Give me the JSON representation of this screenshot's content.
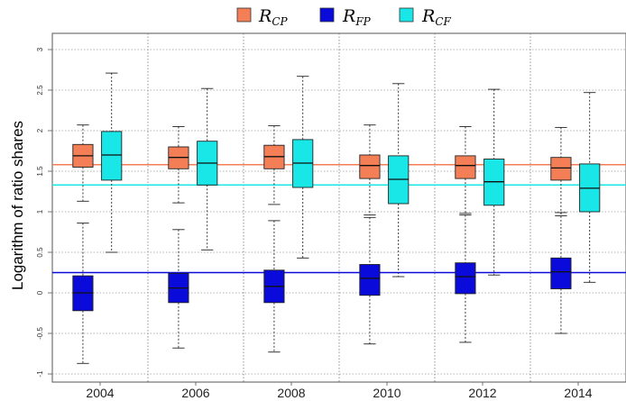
{
  "chart_data": {
    "type": "box",
    "ylabel": "Logarithm of ratio shares",
    "xlabel": "",
    "title": "",
    "categories": [
      "2004",
      "2006",
      "2008",
      "2010",
      "2012",
      "2014"
    ],
    "ylim": [
      -1.1,
      3.2
    ],
    "yticks": [
      "-1",
      "-0.5",
      "0",
      "0.5",
      "1",
      "1.5",
      "2",
      "2.5",
      "3"
    ],
    "ytick_values": [
      -1,
      -0.5,
      0,
      0.5,
      1,
      1.5,
      2,
      2.5,
      3
    ],
    "grid": "horizontal dotted",
    "legend_position": "top-center",
    "series": [
      {
        "name": "R",
        "sub": "CP",
        "color": "#f47f56",
        "reference_line": 1.58,
        "boxes": [
          {
            "whisker_low": 1.13,
            "q1": 1.55,
            "median": 1.69,
            "q3": 1.83,
            "whisker_high": 2.07
          },
          {
            "whisker_low": 1.11,
            "q1": 1.53,
            "median": 1.67,
            "q3": 1.8,
            "whisker_high": 2.05
          },
          {
            "whisker_low": 1.09,
            "q1": 1.53,
            "median": 1.68,
            "q3": 1.82,
            "whisker_high": 2.06
          },
          {
            "whisker_low": 0.96,
            "q1": 1.41,
            "median": 1.57,
            "q3": 1.7,
            "whisker_high": 2.07
          },
          {
            "whisker_low": 0.98,
            "q1": 1.41,
            "median": 1.57,
            "q3": 1.69,
            "whisker_high": 2.05
          },
          {
            "whisker_low": 0.95,
            "q1": 1.39,
            "median": 1.54,
            "q3": 1.67,
            "whisker_high": 2.04
          }
        ]
      },
      {
        "name": "R",
        "sub": "FP",
        "color": "#0a0adb",
        "reference_line": 0.25,
        "boxes": [
          {
            "whisker_low": -0.87,
            "q1": -0.22,
            "median": 0.0,
            "q3": 0.21,
            "whisker_high": 0.86
          },
          {
            "whisker_low": -0.68,
            "q1": -0.12,
            "median": 0.06,
            "q3": 0.24,
            "whisker_high": 0.78
          },
          {
            "whisker_low": -0.73,
            "q1": -0.12,
            "median": 0.08,
            "q3": 0.28,
            "whisker_high": 0.89
          },
          {
            "whisker_low": -0.63,
            "q1": -0.03,
            "median": 0.18,
            "q3": 0.35,
            "whisker_high": 0.93
          },
          {
            "whisker_low": -0.61,
            "q1": -0.01,
            "median": 0.2,
            "q3": 0.37,
            "whisker_high": 0.96
          },
          {
            "whisker_low": -0.5,
            "q1": 0.05,
            "median": 0.26,
            "q3": 0.43,
            "whisker_high": 0.99
          }
        ]
      },
      {
        "name": "R",
        "sub": "CF",
        "color": "#19e6e6",
        "reference_line": 1.33,
        "boxes": [
          {
            "whisker_low": 0.5,
            "q1": 1.39,
            "median": 1.7,
            "q3": 1.99,
            "whisker_high": 2.71
          },
          {
            "whisker_low": 0.53,
            "q1": 1.33,
            "median": 1.6,
            "q3": 1.87,
            "whisker_high": 2.52
          },
          {
            "whisker_low": 0.43,
            "q1": 1.3,
            "median": 1.6,
            "q3": 1.89,
            "whisker_high": 2.67
          },
          {
            "whisker_low": 0.2,
            "q1": 1.1,
            "median": 1.4,
            "q3": 1.69,
            "whisker_high": 2.58
          },
          {
            "whisker_low": 0.22,
            "q1": 1.08,
            "median": 1.37,
            "q3": 1.65,
            "whisker_high": 2.51
          },
          {
            "whisker_low": 0.13,
            "q1": 1.0,
            "median": 1.29,
            "q3": 1.59,
            "whisker_high": 2.47
          }
        ]
      }
    ]
  }
}
